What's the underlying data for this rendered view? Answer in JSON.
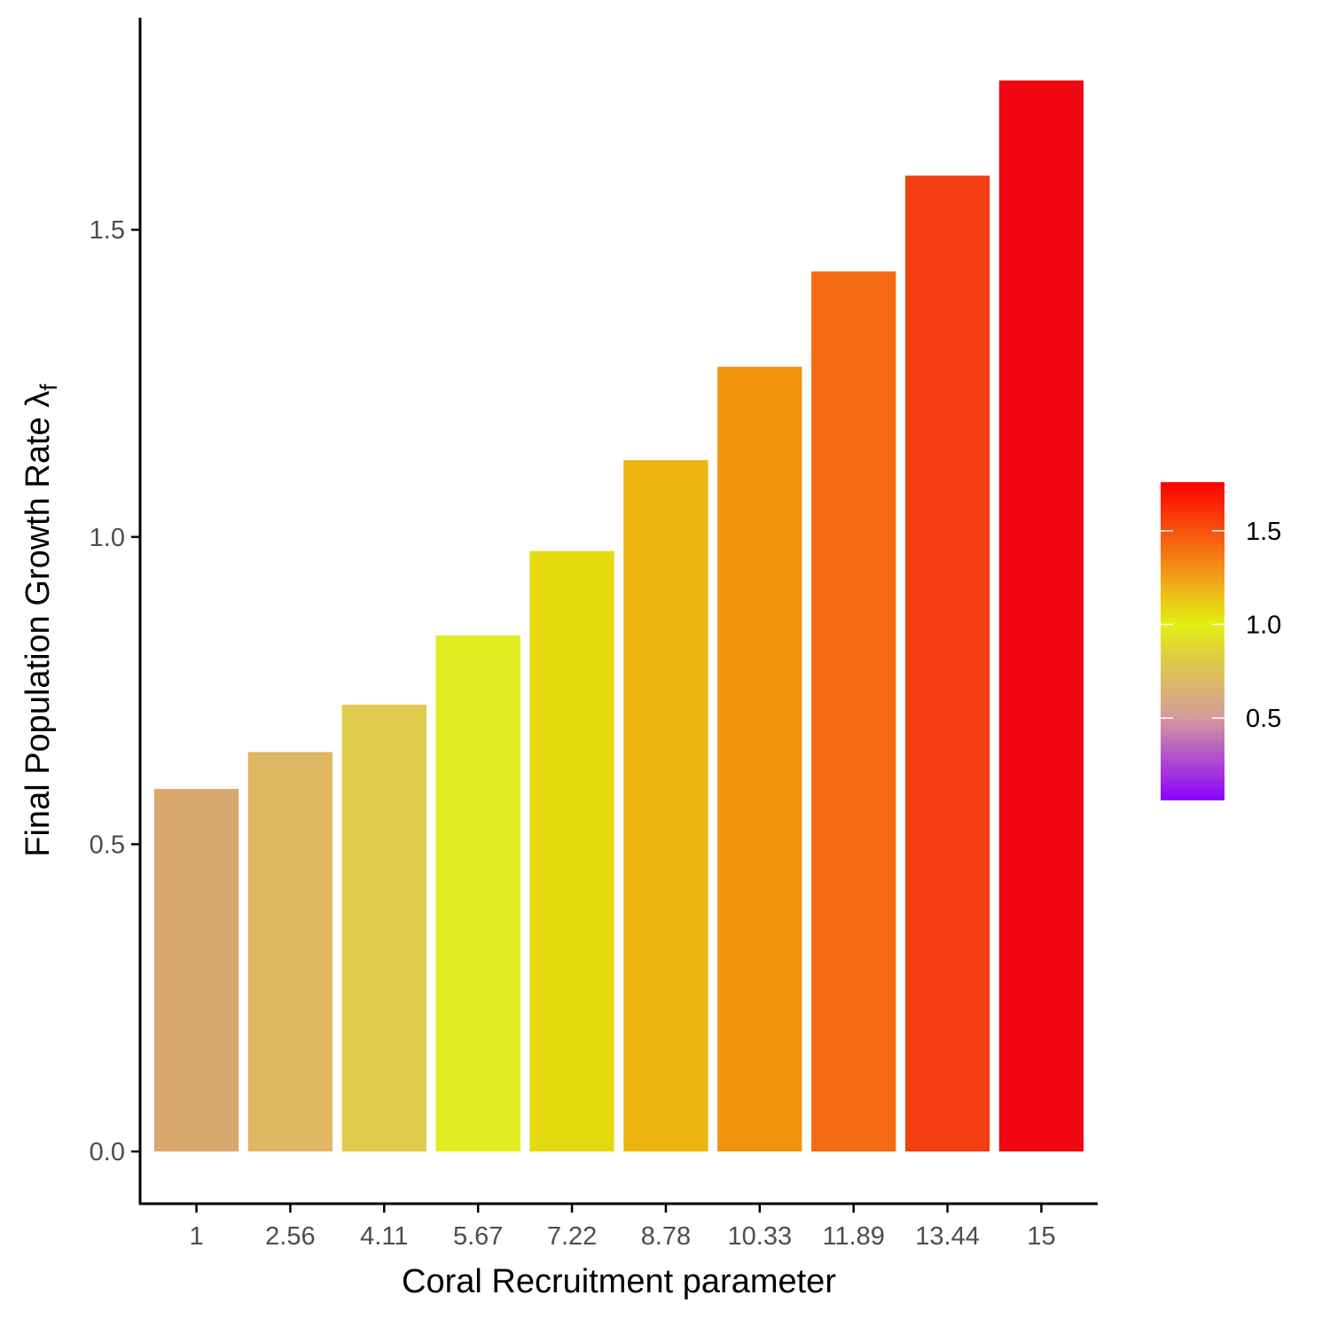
{
  "chart_data": {
    "type": "bar",
    "title": "",
    "xlabel": "Coral Recruitment parameter",
    "ylabel_main": "Final Population Growth Rate ",
    "ylabel_symbol": "λ",
    "ylabel_subscript": "f",
    "categories": [
      "1",
      "2.56",
      "4.11",
      "5.67",
      "7.22",
      "8.78",
      "10.33",
      "11.89",
      "13.44",
      "15"
    ],
    "values": [
      0.59,
      0.65,
      0.727,
      0.84,
      0.977,
      1.125,
      1.277,
      1.432,
      1.588,
      1.743
    ],
    "bar_colors": [
      "#d9a86f",
      "#dfb661",
      "#e1cb4d",
      "#e0ed22",
      "#e5da0e",
      "#eeb510",
      "#f2930e",
      "#f56a12",
      "#f33f12",
      "#f20712"
    ],
    "ylim": [
      -0.085,
      1.845
    ],
    "yticks": [
      0.0,
      0.5,
      1.0,
      1.5
    ],
    "ytick_labels": [
      "0.0",
      "0.5",
      "1.0",
      "1.5"
    ],
    "grid": false,
    "legend": {
      "position": "right",
      "type": "colorbar",
      "range": [
        0.06,
        1.76
      ],
      "ticks": [
        0.5,
        1.0,
        1.5
      ],
      "tick_labels": [
        "0.5",
        "1.0",
        "1.5"
      ],
      "gradient_stops": [
        {
          "value": 0.06,
          "color": "#8b00ff"
        },
        {
          "value": 0.5,
          "color": "#d59a9d"
        },
        {
          "value": 0.85,
          "color": "#dfd23c"
        },
        {
          "value": 1.0,
          "color": "#e2f011"
        },
        {
          "value": 1.25,
          "color": "#f2a01a"
        },
        {
          "value": 1.76,
          "color": "#ff0000"
        }
      ]
    },
    "colors": {
      "axis": "#000000",
      "tick_text": "#4d4d4d",
      "background": "#ffffff"
    }
  }
}
